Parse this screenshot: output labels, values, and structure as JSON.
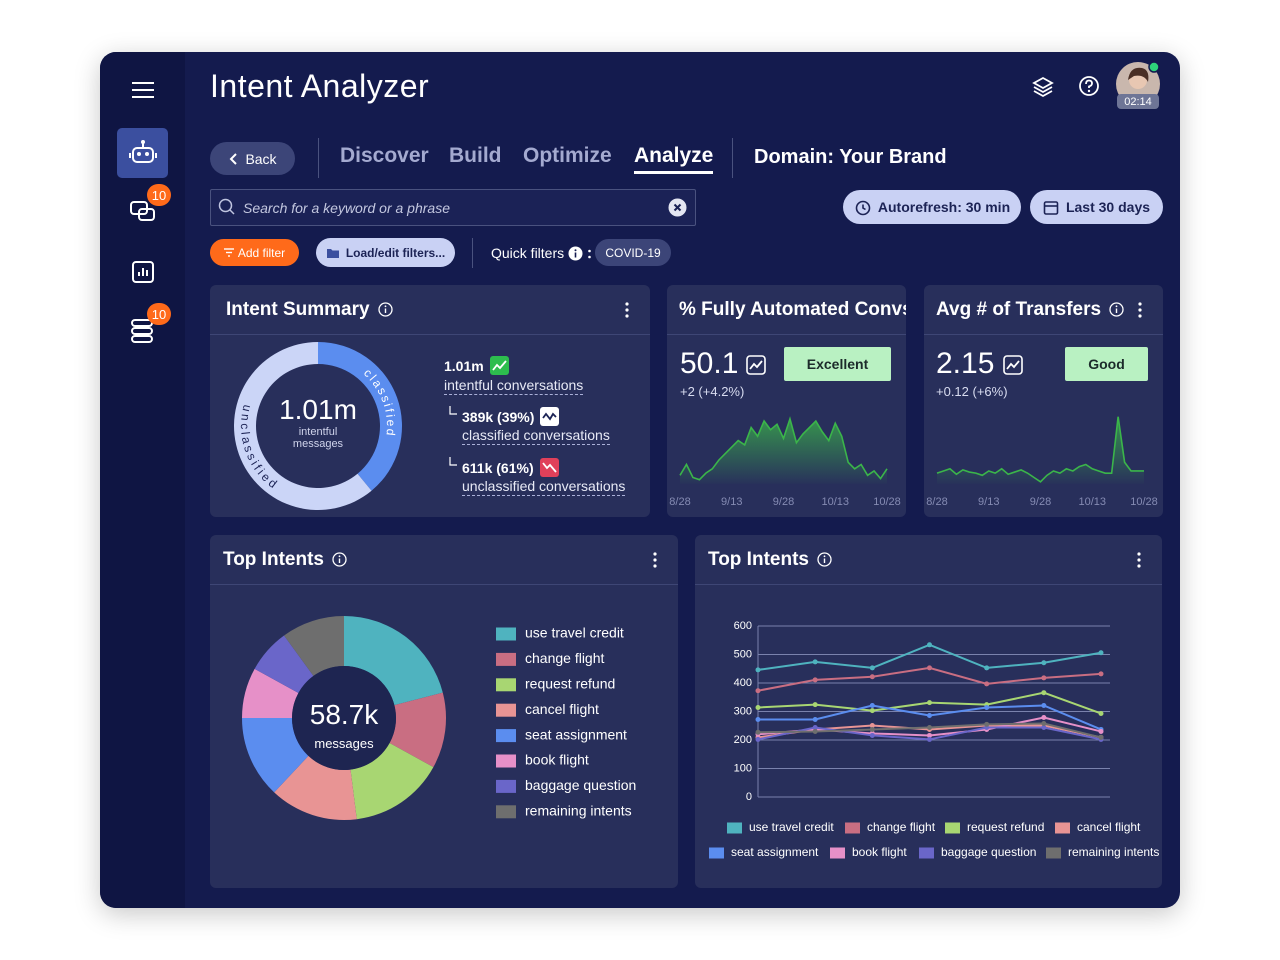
{
  "app": {
    "title": "Intent Analyzer",
    "timer": "02:14",
    "badges": [
      10,
      10
    ]
  },
  "nav": {
    "back": "Back",
    "tabs": [
      "Discover",
      "Build",
      "Optimize",
      "Analyze"
    ],
    "active_tab": 3,
    "domain": "Domain: Your Brand"
  },
  "toolbar": {
    "search_placeholder": "Search for a keyword or a phrase",
    "autorefresh": "Autorefresh: 30 min",
    "date_range": "Last 30 days",
    "add_filter": "Add filter",
    "load_filters": "Load/edit filters...",
    "quick_filters": "Quick filters",
    "quick_filter_chips": [
      "COVID-19"
    ]
  },
  "chart_data": [
    {
      "type": "donut",
      "title": "Intent Summary",
      "center_value": "1.01m",
      "center_label": "intentful messages",
      "categories": [
        "classified",
        "unclassified"
      ],
      "values": [
        39,
        61
      ],
      "colors": [
        "#5b8def",
        "#cbd5f7"
      ],
      "stats": [
        {
          "value": "1.01m",
          "label": "intentful conversations"
        },
        {
          "value": "389k (39%)",
          "label": "classified conversations"
        },
        {
          "value": "611k (61%)",
          "label": "unclassified conversations"
        }
      ]
    },
    {
      "type": "area",
      "title": "% Fully Automated Convs",
      "kpi": "50.1",
      "change": "+2 (+4.2%)",
      "rating": "Excellent",
      "color": "#3bb54a",
      "categories": [
        "8/28",
        null,
        null,
        null,
        null,
        null,
        null,
        null,
        "9/13",
        null,
        null,
        null,
        null,
        null,
        null,
        null,
        "9/28",
        null,
        null,
        null,
        null,
        null,
        null,
        null,
        "10/13",
        null,
        null,
        null,
        null,
        null,
        null,
        null,
        "10/28"
      ],
      "values": [
        8,
        18,
        6,
        4,
        10,
        14,
        22,
        28,
        34,
        40,
        36,
        52,
        44,
        58,
        50,
        55,
        42,
        60,
        38,
        46,
        52,
        58,
        48,
        40,
        56,
        44,
        20,
        14,
        18,
        8,
        12,
        5,
        14
      ],
      "ylim": [
        0,
        70
      ]
    },
    {
      "type": "area",
      "title": "Avg # of Transfers",
      "kpi": "2.15",
      "change": "+0.12 (+6%)",
      "rating": "Good",
      "color": "#3bb54a",
      "categories": [
        "8/28",
        null,
        null,
        null,
        null,
        null,
        null,
        null,
        "9/13",
        null,
        null,
        null,
        null,
        null,
        null,
        null,
        "9/28",
        null,
        null,
        null,
        null,
        null,
        null,
        null,
        "10/13",
        null,
        null,
        null,
        null,
        null,
        null,
        null,
        "10/28"
      ],
      "values": [
        10,
        12,
        14,
        9,
        13,
        11,
        10,
        8,
        12,
        10,
        14,
        9,
        11,
        13,
        10,
        6,
        2,
        8,
        12,
        10,
        14,
        12,
        16,
        18,
        14,
        12,
        10,
        10,
        62,
        20,
        12,
        12,
        12
      ],
      "ylim": [
        0,
        70
      ]
    },
    {
      "type": "pie",
      "title": "Top Intents",
      "center_value": "58.7k",
      "center_label": "messages",
      "categories": [
        "use travel credit",
        "change flight",
        "request refund",
        "cancel flight",
        "seat assignment",
        "book flight",
        "baggage question",
        "remaining intents"
      ],
      "values": [
        21,
        12,
        15,
        14,
        13,
        8,
        7,
        10
      ],
      "colors": [
        "#4fb3bf",
        "#c96e82",
        "#a8d672",
        "#e89494",
        "#5b8def",
        "#e690c8",
        "#6a66c9",
        "#6e6e6e"
      ]
    },
    {
      "type": "line",
      "title": "Top Intents",
      "categories": [
        null,
        null,
        null,
        null,
        null,
        null,
        null
      ],
      "ylim": [
        0,
        600
      ],
      "yticks": [
        0,
        100,
        200,
        300,
        400,
        500,
        600
      ],
      "grid": true,
      "series": [
        {
          "name": "use travel credit",
          "color": "#4fb3bf",
          "values": [
            446,
            474,
            453,
            534,
            453,
            471,
            506
          ]
        },
        {
          "name": "change flight",
          "color": "#c96e82",
          "values": [
            373,
            411,
            422,
            453,
            397,
            418,
            432
          ]
        },
        {
          "name": "request refund",
          "color": "#a8d672",
          "values": [
            314,
            324,
            303,
            331,
            324,
            366,
            293
          ]
        },
        {
          "name": "cancel flight",
          "color": "#e89494",
          "values": [
            209,
            237,
            251,
            237,
            251,
            251,
            209
          ]
        },
        {
          "name": "seat assignment",
          "color": "#5b8def",
          "values": [
            272,
            272,
            321,
            286,
            314,
            321,
            237
          ]
        },
        {
          "name": "book flight",
          "color": "#e690c8",
          "values": [
            220,
            237,
            223,
            216,
            237,
            279,
            230
          ]
        },
        {
          "name": "baggage question",
          "color": "#6a66c9",
          "values": [
            202,
            244,
            216,
            202,
            244,
            244,
            202
          ]
        },
        {
          "name": "remaining intents",
          "color": "#6e6e6e",
          "values": [
            227,
            230,
            237,
            244,
            255,
            258,
            209
          ]
        }
      ]
    }
  ]
}
